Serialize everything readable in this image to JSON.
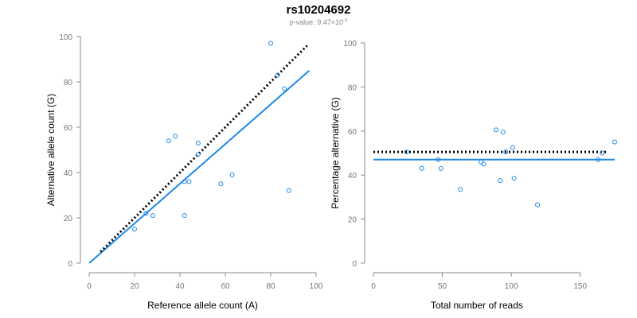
{
  "title": "rs10204692",
  "subtitle": {
    "prefix": "p-value: 9.47×10",
    "exponent": "-3"
  },
  "colors": {
    "fit_line": "#1e88e5",
    "points": "#1e88e5",
    "reference_line": "#000000",
    "axis": "#888888"
  },
  "chart_data": [
    {
      "type": "scatter",
      "xlabel": "Reference allele count (A)",
      "ylabel": "Alternative allele count (G)",
      "xlim": [
        0,
        100
      ],
      "ylim": [
        0,
        100
      ],
      "xticks": [
        0,
        20,
        40,
        60,
        80,
        100
      ],
      "yticks": [
        0,
        20,
        40,
        60,
        80,
        100
      ],
      "points": [
        {
          "x": 20,
          "y": 15
        },
        {
          "x": 25,
          "y": 22
        },
        {
          "x": 28,
          "y": 21
        },
        {
          "x": 35,
          "y": 54
        },
        {
          "x": 38,
          "y": 56
        },
        {
          "x": 42,
          "y": 21
        },
        {
          "x": 42,
          "y": 36
        },
        {
          "x": 44,
          "y": 36
        },
        {
          "x": 48,
          "y": 53
        },
        {
          "x": 48,
          "y": 48
        },
        {
          "x": 58,
          "y": 35
        },
        {
          "x": 63,
          "y": 39
        },
        {
          "x": 80,
          "y": 97
        },
        {
          "x": 83,
          "y": 83
        },
        {
          "x": 86,
          "y": 77
        },
        {
          "x": 88,
          "y": 32
        }
      ],
      "fit_line": [
        [
          0,
          0
        ],
        [
          97,
          85
        ]
      ],
      "reference_line": [
        [
          5,
          5
        ],
        [
          96,
          96
        ]
      ]
    },
    {
      "type": "scatter",
      "xlabel": "Total number of reads",
      "ylabel": "Percentage alternative (G)",
      "xlim": [
        0,
        175
      ],
      "ylim": [
        0,
        100
      ],
      "xticks": [
        0,
        50,
        100,
        150
      ],
      "yticks": [
        0,
        20,
        40,
        60,
        80,
        100
      ],
      "points": [
        {
          "x": 24,
          "y": 50.5
        },
        {
          "x": 35,
          "y": 43
        },
        {
          "x": 47,
          "y": 47
        },
        {
          "x": 49,
          "y": 43
        },
        {
          "x": 63,
          "y": 33.5
        },
        {
          "x": 78,
          "y": 46
        },
        {
          "x": 80,
          "y": 45
        },
        {
          "x": 89,
          "y": 60.5
        },
        {
          "x": 92,
          "y": 37.5
        },
        {
          "x": 94,
          "y": 59.5
        },
        {
          "x": 96,
          "y": 50.5
        },
        {
          "x": 101,
          "y": 52.5
        },
        {
          "x": 102,
          "y": 38.5
        },
        {
          "x": 119,
          "y": 26.5
        },
        {
          "x": 163,
          "y": 47
        },
        {
          "x": 166,
          "y": 50
        },
        {
          "x": 175,
          "y": 55
        }
      ],
      "fit_line": [
        [
          0,
          47
        ],
        [
          175,
          47
        ]
      ],
      "reference_line": [
        [
          0,
          50.5
        ],
        [
          170,
          50.5
        ]
      ]
    }
  ]
}
